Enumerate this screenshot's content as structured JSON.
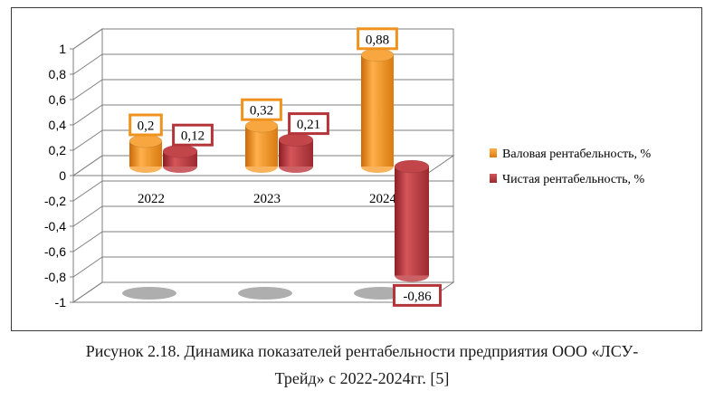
{
  "caption": {
    "line1": "Рисунок 2.18. Динамика показателей рентабельности предприятия ООО «ЛСУ-",
    "line2": "Трейд» с 2022-2024гг. [5]"
  },
  "colors": {
    "gross": "#f0931e",
    "gross_label_border": "#f0931e",
    "net": "#b3353a",
    "net_label_border": "#b3353a",
    "axis_text": "#000000"
  },
  "chart_data": {
    "type": "bar",
    "style": "3d-cylinder",
    "categories": [
      "2022",
      "2023",
      "2024"
    ],
    "series": [
      {
        "name": "Валовая рентабельность, %",
        "values": [
          0.2,
          0.32,
          0.88
        ],
        "labels": [
          "0,2",
          "0,32",
          "0,88"
        ]
      },
      {
        "name": "Чистая рентабельность, %",
        "values": [
          0.12,
          0.21,
          -0.86
        ],
        "labels": [
          "0,12",
          "0,21",
          "-0,86"
        ]
      }
    ],
    "ylim": [
      -1,
      1
    ],
    "yticks": [
      1,
      0.8,
      0.6,
      0.4,
      0.2,
      0,
      -0.2,
      -0.4,
      -0.6,
      -0.8,
      -1
    ],
    "ytick_labels": [
      "1",
      "0,8",
      "0,6",
      "0,4",
      "0,2",
      "0",
      "-0,2",
      "-0,4",
      "-0,6",
      "-0,8",
      "-1"
    ],
    "grid": true,
    "legend_position": "right"
  }
}
